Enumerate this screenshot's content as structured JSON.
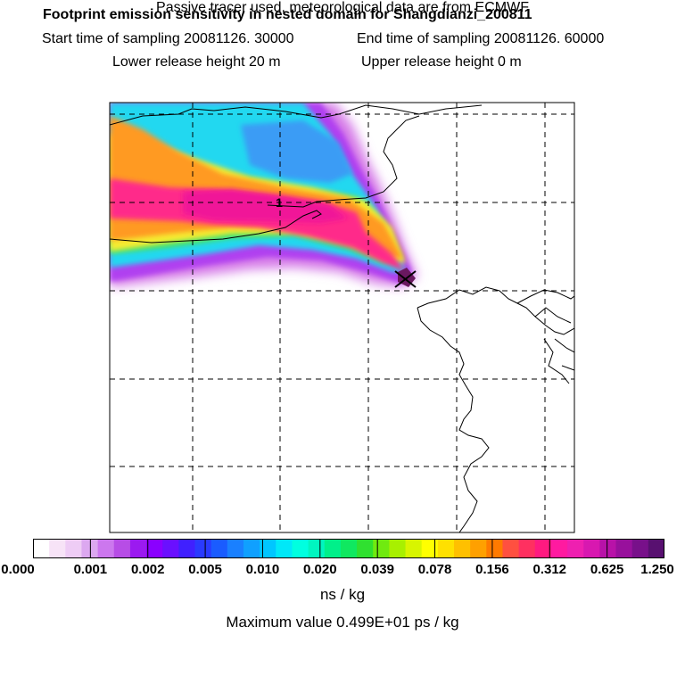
{
  "header": {
    "title": "Footprint emission sensitivity in nested domain for Shangdianzi_200811",
    "start": "Start time of sampling 20081126. 30000",
    "end": "End time of sampling 20081126. 60000",
    "lower": "Lower release height   20 m",
    "upper": "Upper release height    0 m",
    "tracer": "Passive tracer used, meteorological data are from ECMWF"
  },
  "colorbar": {
    "ticks": [
      "0.000",
      "0.001",
      "0.002",
      "0.005",
      "0.010",
      "0.020",
      "0.039",
      "0.078",
      "0.156",
      "0.312",
      "0.625",
      "1.250"
    ],
    "colors": [
      "#ffffff",
      "#f7e3f7",
      "#eeccf5",
      "#dca8f0",
      "#cc77ee",
      "#b74de6",
      "#9b1af0",
      "#8a00ff",
      "#6a10ff",
      "#4020ff",
      "#2a3aff",
      "#1a5cff",
      "#1a80ff",
      "#10a0ff",
      "#00c6ff",
      "#00e8f8",
      "#00ffe0",
      "#00f5c0",
      "#00f08a",
      "#10e860",
      "#30e030",
      "#70ea10",
      "#a8f000",
      "#d8f500",
      "#ffff00",
      "#ffe000",
      "#ffc000",
      "#ffa000",
      "#ff7a00",
      "#ff5040",
      "#ff3060",
      "#ff1a80",
      "#ff1aa0",
      "#ee20b0",
      "#d818b0",
      "#b812a8",
      "#98109c",
      "#78108a",
      "#581070"
    ],
    "units": "ns / kg"
  },
  "max_value": "Maximum value  0.499E+01 ps / kg",
  "map_labels": {
    "receptor_marker": "1"
  }
}
